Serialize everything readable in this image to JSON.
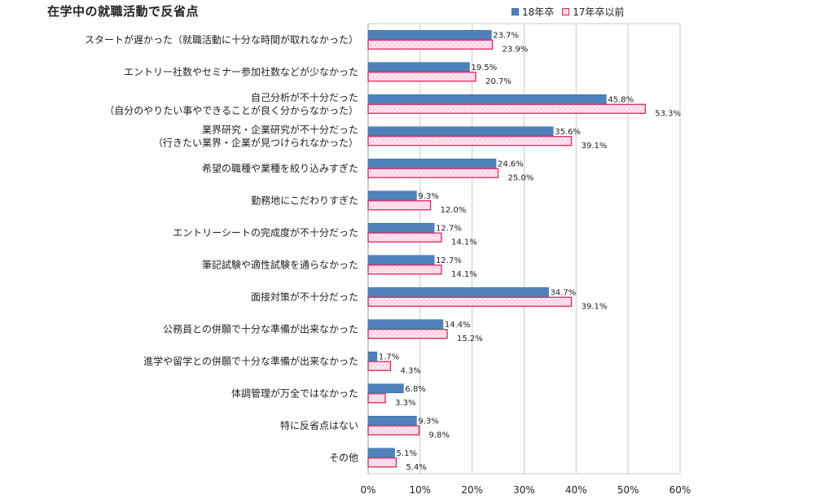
{
  "title": "在学中の就職活動で反省点",
  "legend": {
    "series_a": "18年卒",
    "series_b": "17年卒以前"
  },
  "colors": {
    "series_a": "#4f81bd",
    "series_b_border": "#e0245e",
    "series_b_fill": "#fdd7e8"
  },
  "chart_data": {
    "type": "bar",
    "orientation": "horizontal",
    "categories": [
      [
        "スタートが遅かった（就職活動に十分な時間が取れなかった）"
      ],
      [
        "エントリー社数やセミナー参加社数などが少なかった"
      ],
      [
        "自己分析が不十分だった",
        "（自分のやりたい事やできることが良く分からなかった）"
      ],
      [
        "業界研究・企業研究が不十分だった",
        "（行きたい業界・企業が見つけられなかった）"
      ],
      [
        "希望の職種や業種を絞り込みすぎた"
      ],
      [
        "勤務地にこだわりすぎた"
      ],
      [
        "エントリーシートの完成度が不十分だった"
      ],
      [
        "筆記試験や適性試験を通らなかった"
      ],
      [
        "面接対策が不十分だった"
      ],
      [
        "公務員との併願で十分な準備が出来なかった"
      ],
      [
        "進学や留学との併願で十分な準備が出来なかった"
      ],
      [
        "体調管理が万全ではなかった"
      ],
      [
        "特に反省点はない"
      ],
      [
        "その他"
      ]
    ],
    "series": [
      {
        "name": "18年卒",
        "values": [
          23.7,
          19.5,
          45.8,
          35.6,
          24.6,
          9.3,
          12.7,
          12.7,
          34.7,
          14.4,
          1.7,
          6.8,
          9.3,
          5.1
        ],
        "labels": [
          "23.7%",
          "19.5%",
          "45.8%",
          "35.6%",
          "24.6%",
          "9.3%",
          "12.7%",
          "12.7%",
          "34.7%",
          "14.4%",
          "1.7%",
          "6.8%",
          "9.3%",
          "5.1%"
        ]
      },
      {
        "name": "17年卒以前",
        "values": [
          23.9,
          20.7,
          53.3,
          39.1,
          25.0,
          12.0,
          14.1,
          14.1,
          39.1,
          15.2,
          4.3,
          3.3,
          9.8,
          5.4
        ],
        "labels": [
          "23.9%",
          "20.7%",
          "53.3%",
          "39.1%",
          "25.0%",
          "12.0%",
          "14.1%",
          "14.1%",
          "39.1%",
          "15.2%",
          "4.3%",
          "3.3%",
          "9.8%",
          "5.4%"
        ]
      }
    ],
    "xlim": [
      0,
      60
    ],
    "xticks": [
      "0%",
      "10%",
      "20%",
      "30%",
      "40%",
      "50%",
      "60%"
    ],
    "grid": true,
    "legend_position": "top-right"
  }
}
